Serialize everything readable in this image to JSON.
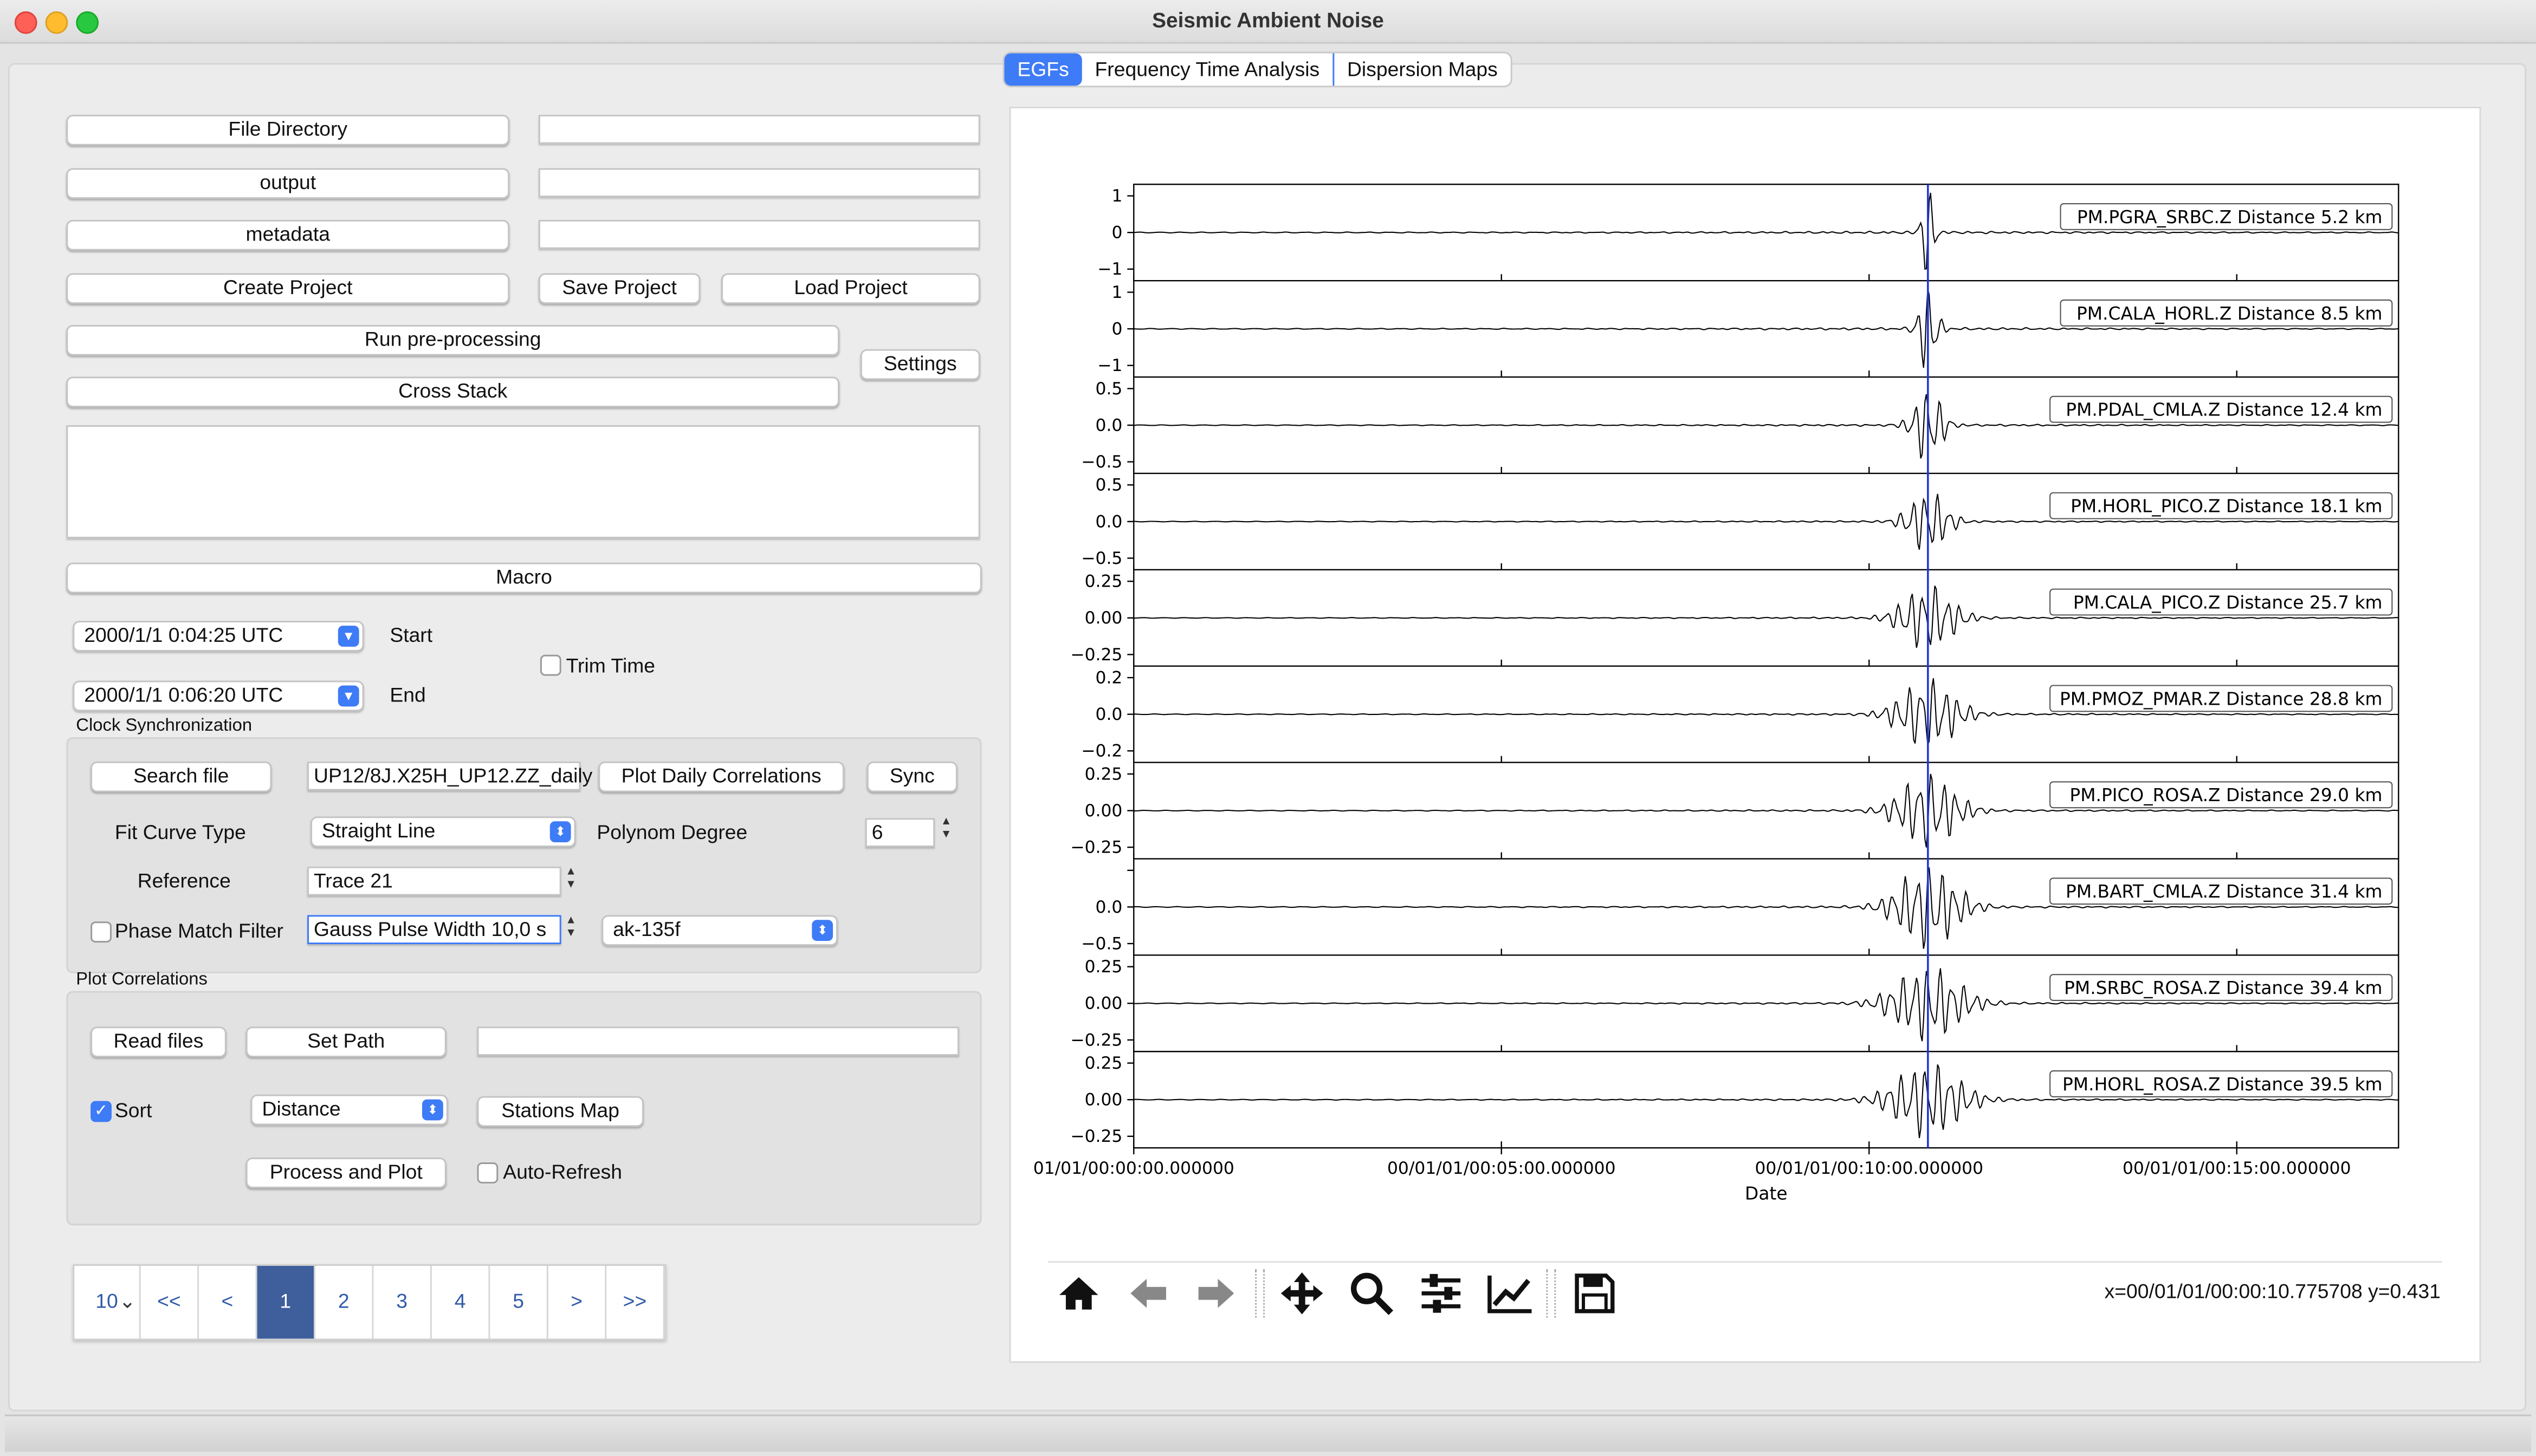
{
  "window": {
    "title": "Seismic Ambient Noise"
  },
  "tabs": [
    "EGFs",
    "Frequency Time Analysis",
    "Dispersion Maps"
  ],
  "files": {
    "file_directory_label": "File Directory",
    "output_label": "output",
    "metadata_label": "metadata",
    "file_directory_value": "",
    "output_value": "",
    "metadata_value": ""
  },
  "project": {
    "create_label": "Create Project",
    "save_label": "Save Project",
    "load_label": "Load Project",
    "preprocess_label": "Run pre-processing",
    "cross_stack_label": "Cross  Stack",
    "settings_label": "Settings",
    "macro_label": "Macro"
  },
  "time": {
    "start_value": "2000/1/1 0:04:25 UTC",
    "end_value": "2000/1/1 0:06:20 UTC",
    "start_label": "Start",
    "end_label": "End",
    "trim_label": "Trim Time"
  },
  "clock": {
    "section_label": "Clock Synchronization",
    "search_label": "Search file",
    "file_value": "UP12/8J.X25H_UP12.ZZ_daily",
    "plot_daily_label": "Plot Daily Correlations",
    "sync_label": "Sync",
    "fit_label": "Fit Curve Type",
    "fit_value": "Straight Line",
    "poly_label": "Polynom Degree",
    "poly_value": "6",
    "reference_label": "Reference",
    "reference_value": "Trace 21",
    "pmf_label": "Phase Match Filter",
    "gauss_value": "Gauss Pulse Width 10,0 s",
    "model_value": "ak-135f"
  },
  "plotcorr": {
    "section_label": "Plot Correlations",
    "read_label": "Read files",
    "setpath_label": "Set Path",
    "path_value": "",
    "sort_label": "Sort",
    "sort_value": "Distance",
    "stations_label": "Stations Map",
    "process_label": "Process and Plot",
    "autorefresh_label": "Auto-Refresh"
  },
  "pager": {
    "page_size": "10",
    "items": [
      "<<",
      "<",
      "1",
      "2",
      "3",
      "4",
      "5",
      ">",
      ">>"
    ],
    "active": "1"
  },
  "toolbar": {
    "icons": [
      "home-icon",
      "back-arrow-icon",
      "forward-arrow-icon",
      "pan-icon",
      "zoom-icon",
      "configure-subplots-icon",
      "edit-axis-icon",
      "save-icon"
    ],
    "coords": "x=00/01/01/00:00:10.775708 y=0.431"
  },
  "chart_data": {
    "type": "line",
    "xlabel": "Date",
    "xticks": [
      "01/01/00:00:00.000000",
      "00/01/01/00:05:00.000000",
      "00/01/01/00:10:00.000000",
      "00/01/01/00:15:00.000000"
    ],
    "xlim_minutes": [
      0,
      17.2
    ],
    "marker_minutes": 10.8,
    "series": [
      {
        "name": "PM.PGRA_SRBC.Z Distance 5.2 km",
        "yticks": [
          "1",
          "0",
          "−1"
        ],
        "spread": 0.25,
        "amp": 1.0
      },
      {
        "name": "PM.CALA_HORL.Z Distance 8.5 km",
        "yticks": [
          "1",
          "0",
          "−1"
        ],
        "spread": 0.35,
        "amp": 1.0
      },
      {
        "name": "PM.PDAL_CMLA.Z Distance 12.4 km",
        "yticks": [
          "0.5",
          "0.0",
          "−0.5"
        ],
        "spread": 0.55,
        "amp": 0.85
      },
      {
        "name": "PM.HORL_PICO.Z Distance 18.1 km",
        "yticks": [
          "0.5",
          "0.0",
          "−0.5"
        ],
        "spread": 0.75,
        "amp": 0.7
      },
      {
        "name": "PM.CALA_PICO.Z Distance 25.7 km",
        "yticks": [
          "0.25",
          "0.00",
          "−0.25"
        ],
        "spread": 1.0,
        "amp": 0.75
      },
      {
        "name": "PM.PMOZ_PMAR.Z Distance 28.8 km",
        "yticks": [
          "0.2",
          "0.0",
          "−0.2"
        ],
        "spread": 1.1,
        "amp": 0.8
      },
      {
        "name": "PM.PICO_ROSA.Z Distance 29.0 km",
        "yticks": [
          "0.25",
          "0.00",
          "−0.25"
        ],
        "spread": 1.1,
        "amp": 0.85
      },
      {
        "name": "PM.BART_CMLA.Z Distance 31.4 km",
        "yticks": [
          "",
          "0.0",
          "−0.5"
        ],
        "spread": 1.15,
        "amp": 0.95
      },
      {
        "name": "PM.SRBC_ROSA.Z Distance 39.4 km",
        "yticks": [
          "0.25",
          "0.00",
          "−0.25"
        ],
        "spread": 1.3,
        "amp": 0.85
      },
      {
        "name": "PM.HORL_ROSA.Z Distance 39.5 km",
        "yticks": [
          "0.25",
          "0.00",
          "−0.25"
        ],
        "spread": 1.3,
        "amp": 0.85
      }
    ]
  }
}
